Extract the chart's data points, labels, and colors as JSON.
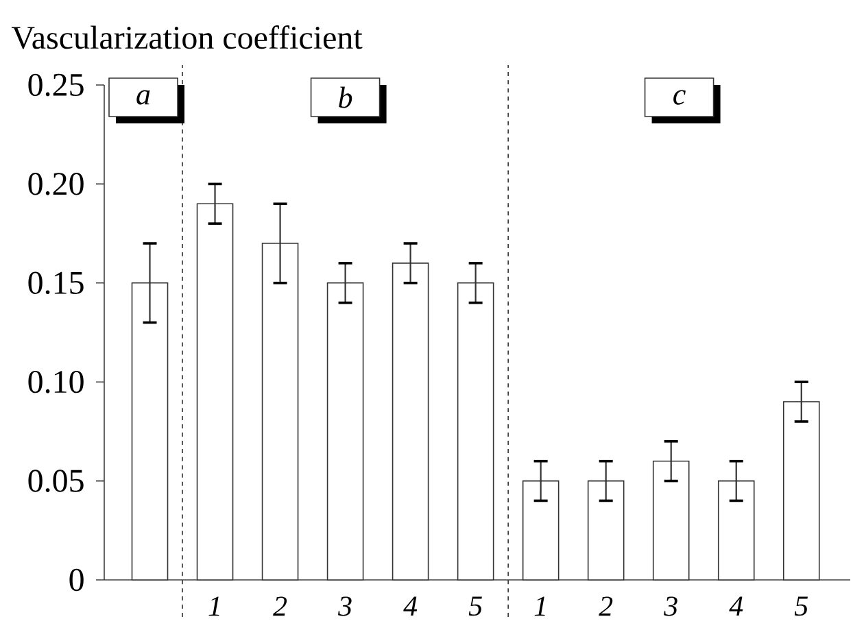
{
  "chart_data": {
    "type": "bar",
    "ylabel": "Vascularization coefficient",
    "categories": [
      null,
      "1",
      "2",
      "3",
      "4",
      "5",
      "1",
      "2",
      "3",
      "4",
      "5"
    ],
    "values": [
      0.15,
      0.19,
      0.17,
      0.15,
      0.16,
      0.15,
      0.05,
      0.05,
      0.06,
      0.05,
      0.09
    ],
    "errors": [
      0.02,
      0.01,
      0.02,
      0.01,
      0.01,
      0.01,
      0.01,
      0.01,
      0.01,
      0.01,
      0.01
    ],
    "color": "#ffffff",
    "ylim": [
      0,
      0.25
    ],
    "yticks": [
      0,
      {
        "value": 0.05,
        "label": "0.05"
      },
      {
        "value": 0.1,
        "label": "0.10"
      },
      {
        "value": 0.15,
        "label": "0.15"
      },
      {
        "value": 0.2,
        "label": "0.20"
      },
      {
        "value": 0.25,
        "label": "0.25"
      }
    ],
    "annotations": [
      "*a*",
      "*b*",
      "*c*"
    ]
  }
}
